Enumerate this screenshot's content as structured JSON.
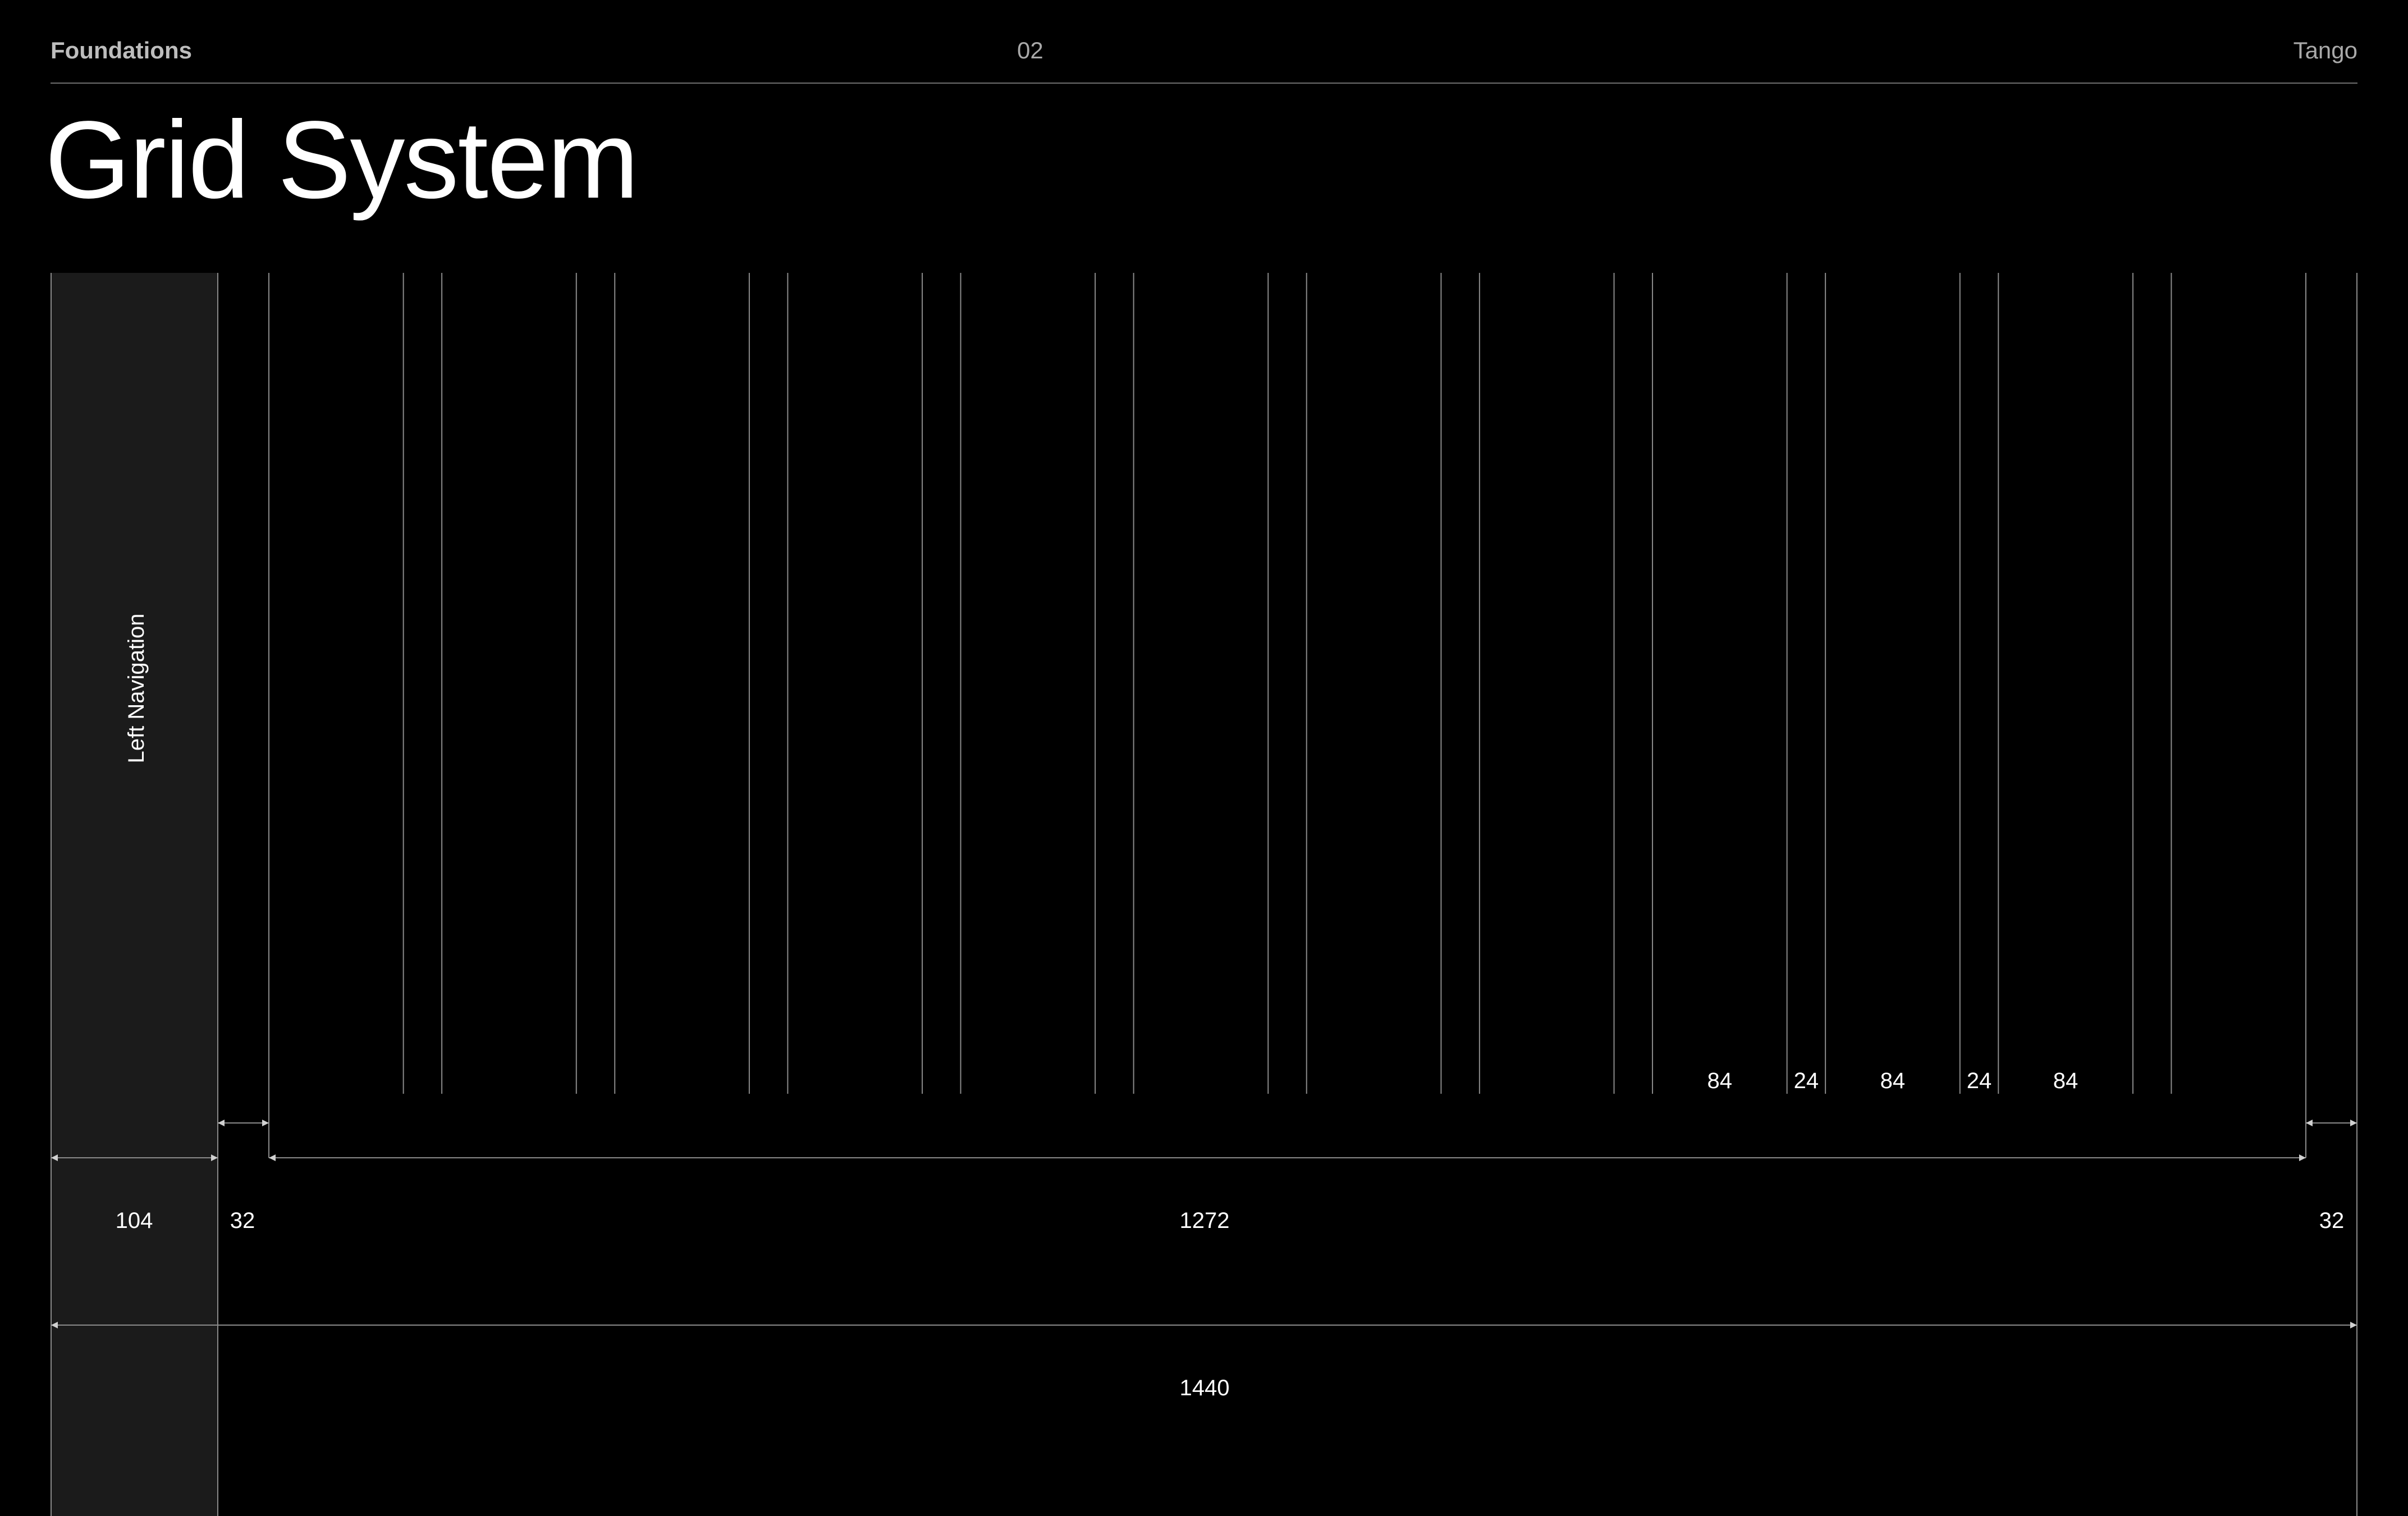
{
  "header": {
    "section": "Foundations",
    "page_number": "02",
    "brand": "Tango"
  },
  "title": "Grid System",
  "diagram": {
    "nav_label": "Left Navigation",
    "nav_width": "104",
    "left_margin": "32",
    "content_width": "1272",
    "right_margin": "32",
    "total_width": "1440",
    "column_width": "84",
    "gutter_width": "24",
    "column_count": 12,
    "column_labels": [
      {
        "text": "84",
        "column": 8,
        "kind": "column"
      },
      {
        "text": "24",
        "column": 8,
        "kind": "gutter"
      },
      {
        "text": "84",
        "column": 9,
        "kind": "column"
      },
      {
        "text": "24",
        "column": 9,
        "kind": "gutter"
      },
      {
        "text": "84",
        "column": 10,
        "kind": "column"
      }
    ]
  },
  "colors": {
    "background": "#000000",
    "nav_fill": "#1b1b1b",
    "line": "#8a8a8a",
    "text": "#ffffff",
    "muted": "#a9a9a9"
  }
}
